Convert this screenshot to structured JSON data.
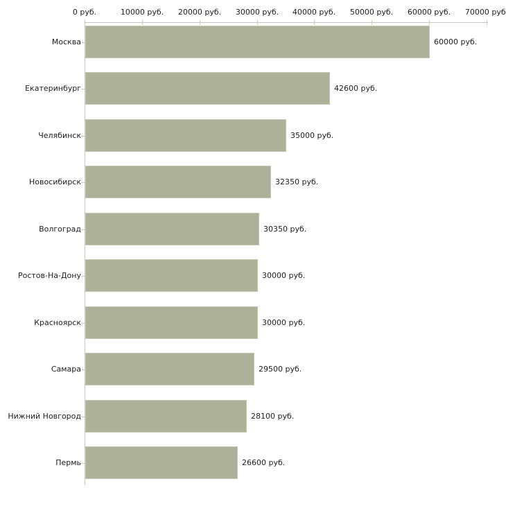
{
  "chart_data": {
    "type": "bar",
    "orientation": "horizontal",
    "title": "",
    "xlabel": "",
    "ylabel": "",
    "unit": "руб.",
    "xlim": [
      0,
      70000
    ],
    "grid": false,
    "legend": false,
    "categories": [
      "Москва",
      "Екатеринбург",
      "Челябинск",
      "Новосибирск",
      "Волгоград",
      "Ростов-На-Дону",
      "Красноярск",
      "Самара",
      "Нижний Новгород",
      "Пермь"
    ],
    "values": [
      60000,
      42600,
      35000,
      32350,
      30350,
      30000,
      30000,
      29500,
      28100,
      26600
    ],
    "rows": [
      {
        "city": "Москва",
        "value": 60000,
        "value_label": "60000 руб."
      },
      {
        "city": "Екатеринбург",
        "value": 42600,
        "value_label": "42600 руб."
      },
      {
        "city": "Челябинск",
        "value": 35000,
        "value_label": "35000 руб."
      },
      {
        "city": "Новосибирск",
        "value": 32350,
        "value_label": "32350 руб."
      },
      {
        "city": "Волгоград",
        "value": 30350,
        "value_label": "30350 руб."
      },
      {
        "city": "Ростов-На-Дону",
        "value": 30000,
        "value_label": "30000 руб."
      },
      {
        "city": "Красноярск",
        "value": 30000,
        "value_label": "30000 руб."
      },
      {
        "city": "Самара",
        "value": 29500,
        "value_label": "29500 руб."
      },
      {
        "city": "Нижний Новгород",
        "value": 28100,
        "value_label": "28100 руб."
      },
      {
        "city": "Пермь",
        "value": 26600,
        "value_label": "26600 руб."
      }
    ],
    "x_ticks": [
      {
        "value": 0,
        "label": "0 руб."
      },
      {
        "value": 10000,
        "label": "10000 руб."
      },
      {
        "value": 20000,
        "label": "20000 руб."
      },
      {
        "value": 30000,
        "label": "30000 руб."
      },
      {
        "value": 40000,
        "label": "40000 руб."
      },
      {
        "value": 50000,
        "label": "50000 руб."
      },
      {
        "value": 60000,
        "label": "60000 руб."
      },
      {
        "value": 70000,
        "label": "70000 руб."
      }
    ],
    "colors": {
      "bar_fill": "#adb199",
      "bar_border": "#c3c7af",
      "axis_line": "#c6c6c6",
      "tick_mark": "#cdcf9e",
      "text": "#1c1c1c",
      "background": "#ffffff"
    }
  }
}
